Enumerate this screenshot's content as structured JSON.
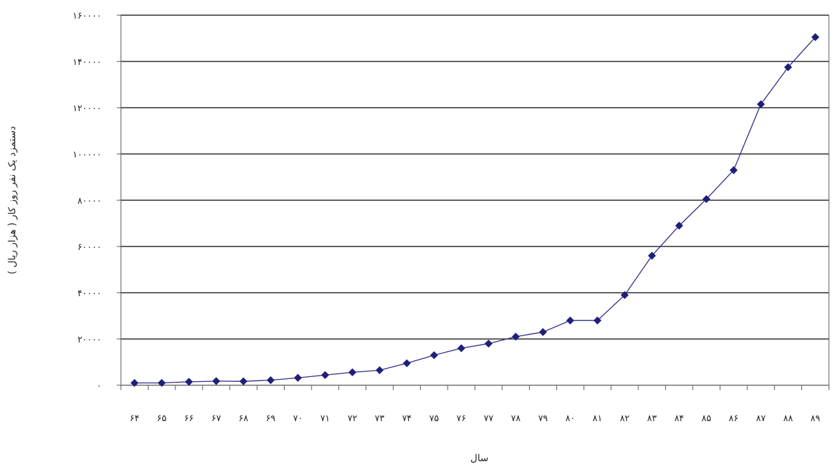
{
  "chart_data": {
    "type": "line",
    "title": "",
    "xlabel": "سال",
    "ylabel": "دستمزد یک نفر روز کار ( هزار ریال )",
    "ylim": [
      0,
      160000
    ],
    "grid": true,
    "y_tick_values": [
      0,
      20000,
      40000,
      60000,
      80000,
      100000,
      120000,
      140000,
      160000
    ],
    "y_tick_labels": [
      "۰",
      "۲۰۰۰۰",
      "۴۰۰۰۰",
      "۶۰۰۰۰",
      "۸۰۰۰۰",
      "۱۰۰۰۰۰",
      "۱۲۰۰۰۰",
      "۱۴۰۰۰۰",
      "۱۶۰۰۰۰"
    ],
    "categories": [
      "۶۴",
      "۶۵",
      "۶۶",
      "۶۷",
      "۶۸",
      "۶۹",
      "۷۰",
      "۷۱",
      "۷۲",
      "۷۳",
      "۷۴",
      "۷۵",
      "۷۶",
      "۷۷",
      "۷۸",
      "۷۹",
      "۸۰",
      "۸۱",
      "۸۲",
      "۸۳",
      "۸۴",
      "۸۵",
      "۸۶",
      "۸۷",
      "۸۸",
      "۸۹"
    ],
    "series": [
      {
        "values": [
          1000,
          1000,
          1500,
          1800,
          1700,
          2200,
          3200,
          4400,
          5600,
          6500,
          9500,
          13000,
          16000,
          18000,
          21000,
          23000,
          28000,
          28000,
          39000,
          56000,
          69000,
          80500,
          93000,
          121500,
          137500,
          150500
        ]
      }
    ],
    "colors": {
      "line": "#2a2a8a",
      "marker": "#1f1f7a",
      "grid": "#000000",
      "axis": "#555555"
    }
  }
}
